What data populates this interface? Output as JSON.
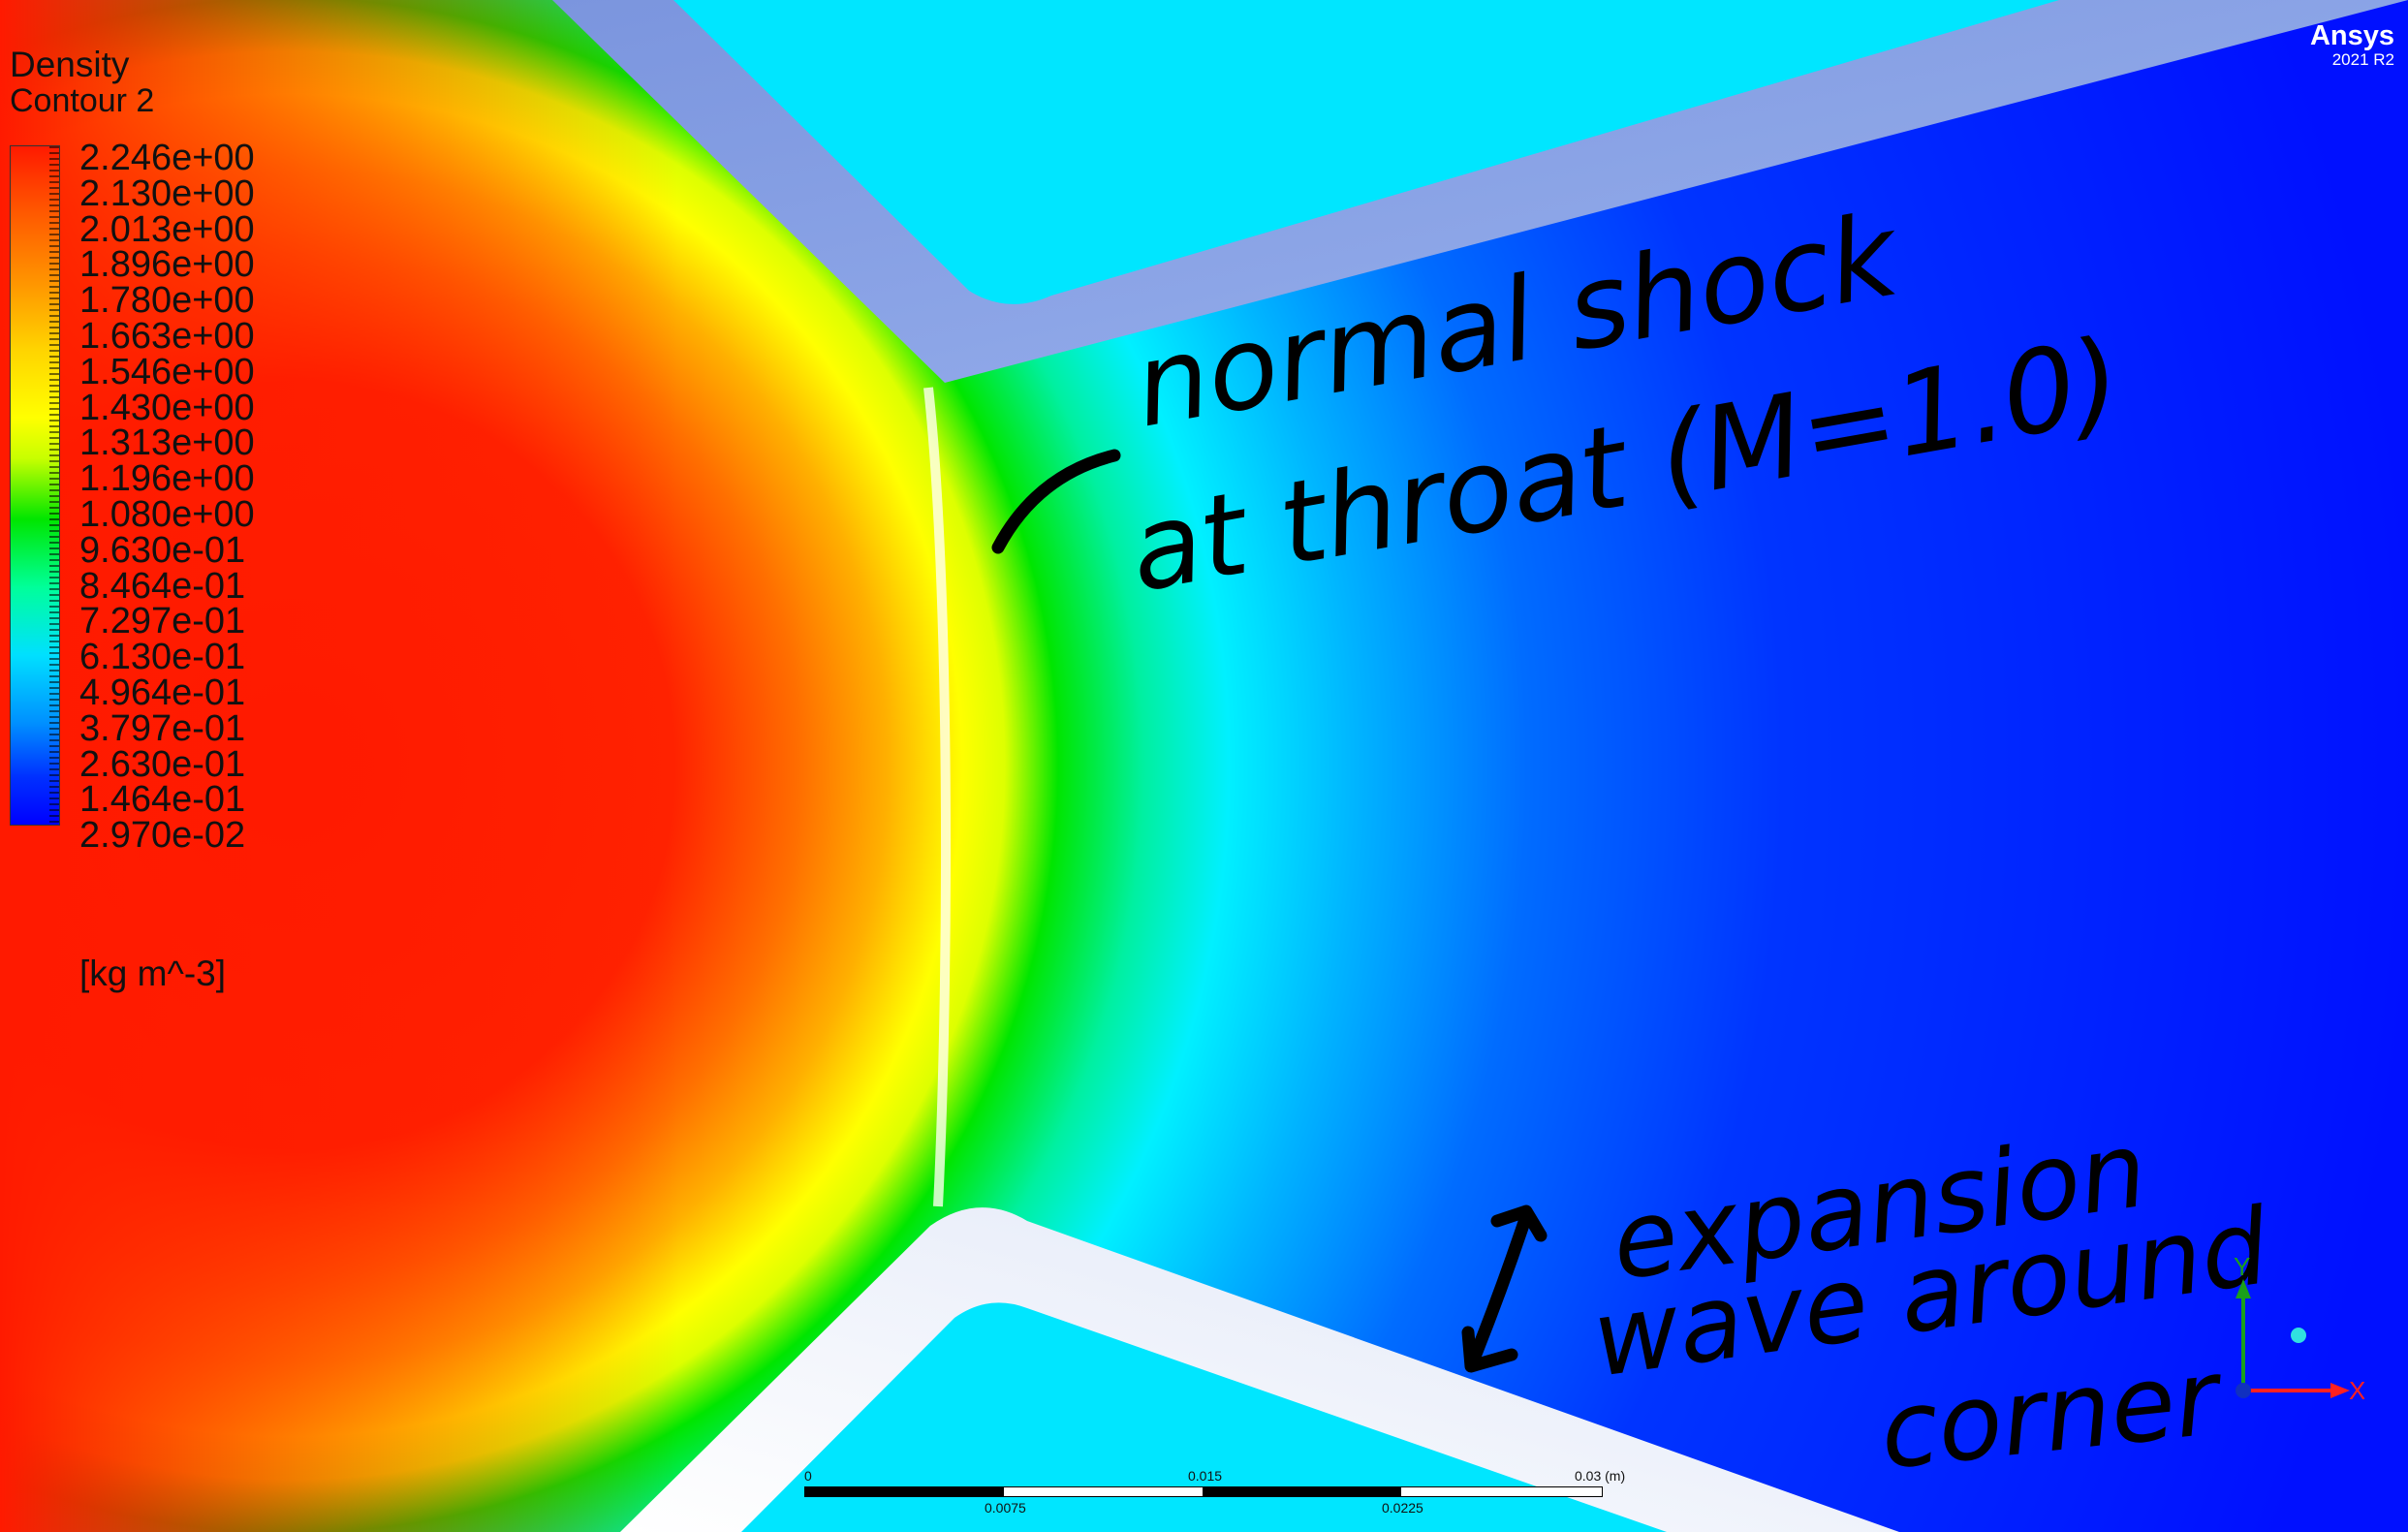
{
  "legend": {
    "title": "Density",
    "subtitle": "Contour 2",
    "unit": "[kg m^-3]",
    "ticks": [
      "2.246e+00",
      "2.130e+00",
      "2.013e+00",
      "1.896e+00",
      "1.780e+00",
      "1.663e+00",
      "1.546e+00",
      "1.430e+00",
      "1.313e+00",
      "1.196e+00",
      "1.080e+00",
      "9.630e-01",
      "8.464e-01",
      "7.297e-01",
      "6.130e-01",
      "4.964e-01",
      "3.797e-01",
      "2.630e-01",
      "1.464e-01",
      "2.970e-02"
    ]
  },
  "brand": {
    "name": "Ansys",
    "version": "2021 R2"
  },
  "scalebar": {
    "top_labels": [
      "0",
      "0.015",
      "0.03  (m)"
    ],
    "bottom_labels": [
      "0.0075",
      "0.0225"
    ]
  },
  "triad": {
    "x_label": "X",
    "y_label": "Y"
  },
  "annotations": {
    "shock_line1": "normal shock",
    "shock_line2": "at throat (M=1.0)",
    "expansion_line1": "expansion",
    "expansion_line2": "wave around",
    "expansion_line3": "corner"
  },
  "colors": {
    "high_density": "#ff1a00",
    "mid_density": "#00e600",
    "low_density": "#0000ff",
    "solid_wall": "#00e5ff",
    "wall_gap_top": "#7d99e0",
    "wall_gap_bottom": "#f4f6fc"
  }
}
